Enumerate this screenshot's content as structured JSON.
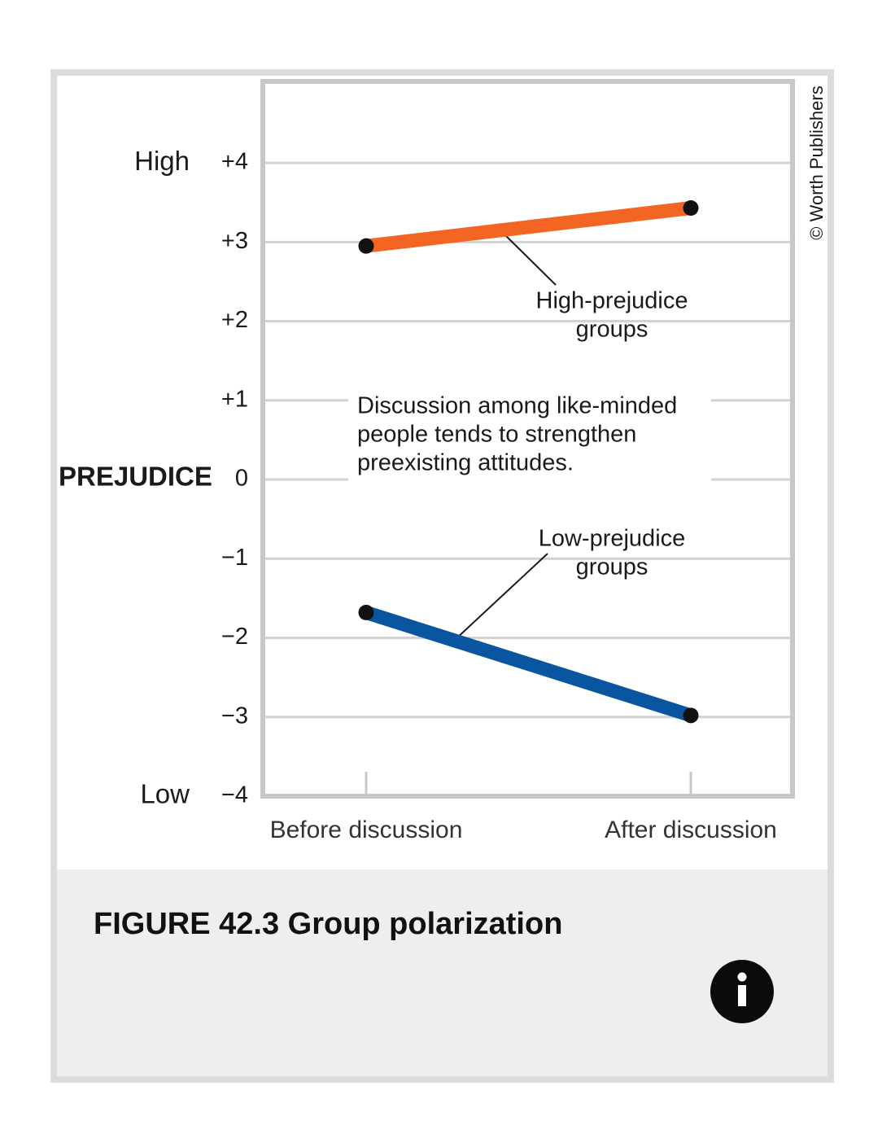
{
  "chart_data": {
    "type": "line",
    "ylabel": "PREJUDICE",
    "y_high_label": "High",
    "y_low_label": "Low",
    "categories": [
      "Before discussion",
      "After discussion"
    ],
    "series": [
      {
        "name_lines": [
          "High-prejudice",
          "groups"
        ],
        "color": "#f26522",
        "values": [
          2.95,
          3.43
        ]
      },
      {
        "name_lines": [
          "Low-prejudice",
          "groups"
        ],
        "color": "#0a55a0",
        "values": [
          -1.68,
          -2.98
        ]
      }
    ],
    "ylim": [
      -4,
      5.06
    ],
    "yticks": [
      {
        "value": -4,
        "label": "−4"
      },
      {
        "value": -3,
        "label": "−3"
      },
      {
        "value": -2,
        "label": "−2"
      },
      {
        "value": -1,
        "label": "−1"
      },
      0,
      {
        "value": 1,
        "label": "+1"
      },
      {
        "value": 2,
        "label": "+2"
      },
      {
        "value": 3,
        "label": "+3"
      },
      {
        "value": 4,
        "label": "+4"
      }
    ],
    "grid": true,
    "annotation": [
      "Discussion among like-minded",
      "people tends to strengthen",
      "preexisting attitudes."
    ],
    "credit": "© Worth Publishers"
  },
  "caption": "FIGURE 42.3 Group polarization"
}
